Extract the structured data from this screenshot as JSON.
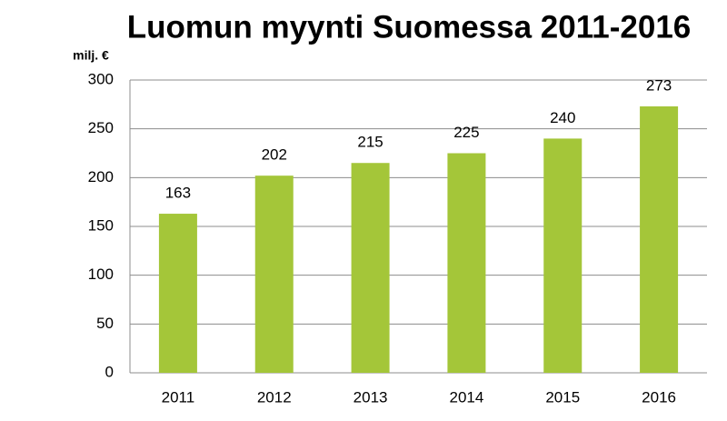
{
  "chart_data": {
    "type": "bar",
    "title": "Luomun myynti Suomessa 2011-2016",
    "y_label": "milj. €",
    "categories": [
      "2011",
      "2012",
      "2013",
      "2014",
      "2015",
      "2016"
    ],
    "values": [
      163,
      202,
      215,
      225,
      240,
      273
    ],
    "color": "#a4c639",
    "ylim": [
      0,
      300
    ],
    "yticks": [
      0,
      50,
      100,
      150,
      200,
      250,
      300
    ],
    "grid": true
  }
}
